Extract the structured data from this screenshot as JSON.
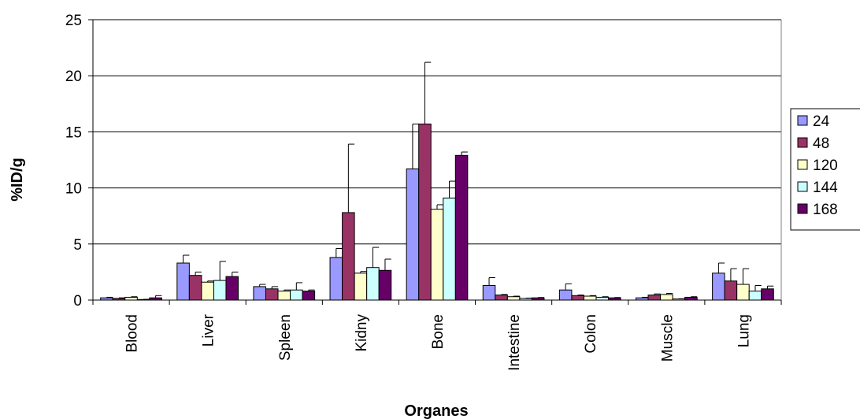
{
  "chart_data": {
    "type": "bar",
    "title": "",
    "xlabel": "Organes",
    "ylabel": "%ID/g",
    "ylim": [
      0,
      25
    ],
    "yticks": [
      0,
      5,
      10,
      15,
      20,
      25
    ],
    "grid": true,
    "legend_position": "right",
    "categories": [
      "Blood",
      "Liver",
      "Spleen",
      "Kidny",
      "Bone",
      "Intestine",
      "Colon",
      "Muscle",
      "Lung"
    ],
    "series": [
      {
        "name": "24",
        "color": "#9999ff",
        "values": [
          0.2,
          3.3,
          1.2,
          3.8,
          11.7,
          1.3,
          0.9,
          0.2,
          2.4
        ],
        "errors": [
          0.05,
          0.7,
          0.2,
          0.8,
          4.0,
          0.7,
          0.55,
          0.05,
          0.9
        ]
      },
      {
        "name": "48",
        "color": "#993366",
        "values": [
          0.15,
          2.2,
          1.0,
          7.8,
          15.7,
          0.45,
          0.4,
          0.45,
          1.7
        ],
        "errors": [
          0.05,
          0.3,
          0.2,
          6.1,
          5.5,
          0.05,
          0.05,
          0.1,
          1.1
        ]
      },
      {
        "name": "120",
        "color": "#ffffcc",
        "values": [
          0.25,
          1.6,
          0.8,
          2.4,
          8.1,
          0.3,
          0.35,
          0.5,
          1.4
        ],
        "errors": [
          0.05,
          0.1,
          0.1,
          0.15,
          0.4,
          0.05,
          0.05,
          0.1,
          1.4
        ]
      },
      {
        "name": "144",
        "color": "#ccffff",
        "values": [
          0.05,
          1.75,
          0.9,
          2.9,
          9.1,
          0.15,
          0.25,
          0.1,
          0.8
        ],
        "errors": [
          0.02,
          1.7,
          0.65,
          1.8,
          1.5,
          0.03,
          0.05,
          0.02,
          0.5
        ]
      },
      {
        "name": "168",
        "color": "#660066",
        "values": [
          0.2,
          2.1,
          0.8,
          2.65,
          12.9,
          0.2,
          0.2,
          0.25,
          1.0
        ],
        "errors": [
          0.2,
          0.4,
          0.1,
          1.0,
          0.3,
          0.03,
          0.03,
          0.05,
          0.25
        ]
      }
    ]
  }
}
